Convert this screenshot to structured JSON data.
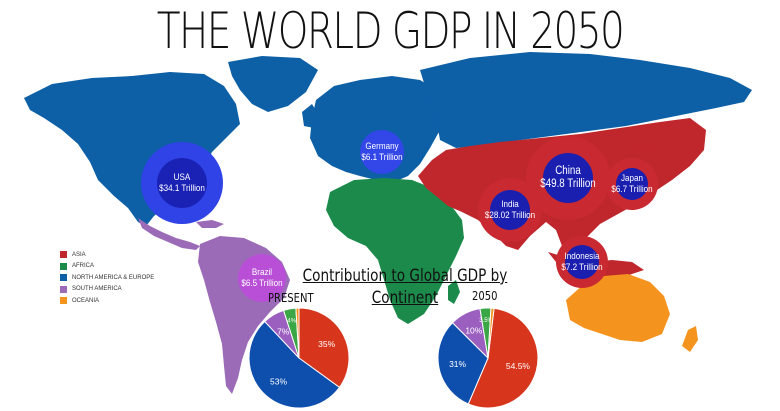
{
  "title": "THE WORLD GDP IN 2050",
  "bubbles": [
    {
      "name": "USA",
      "value": "$34.1 Trillion"
    },
    {
      "name": "Germany",
      "value": "$6.1 Trillion"
    },
    {
      "name": "China",
      "value": "$49.8 Trillion"
    },
    {
      "name": "Japan",
      "value": "$6.7 Trillion"
    },
    {
      "name": "India",
      "value": "$28.02 Trillion"
    },
    {
      "name": "Indonesia",
      "value": "$7.2 Trillion"
    },
    {
      "name": "Brazil",
      "value": "$6.5 Trillion"
    }
  ],
  "legend": [
    {
      "label": "ASIA",
      "color": "#c0272d"
    },
    {
      "label": "AFRICA",
      "color": "#1c8a4a"
    },
    {
      "label": "NORTH AMERICA & EUROPE",
      "color": "#0d5fa6"
    },
    {
      "label": "SOUTH AMERICA",
      "color": "#9b6bb8"
    },
    {
      "label": "OCEANIA",
      "color": "#f5931f"
    }
  ],
  "pies_title": "Contribution to Global GDP by Continent",
  "chart_data": [
    {
      "type": "pie",
      "title": "PRESENT",
      "slices": [
        {
          "label": "Asia",
          "value": 35,
          "text": "35%",
          "color": "#d7351c"
        },
        {
          "label": "North America & Europe",
          "value": 53,
          "text": "53%",
          "color": "#0e4fad"
        },
        {
          "label": "South America",
          "value": 7,
          "text": "7%",
          "color": "#9b5fc0"
        },
        {
          "label": "Africa",
          "value": 4,
          "text": "4%",
          "color": "#3aa645"
        },
        {
          "label": "Oceania",
          "value": 1,
          "text": "",
          "color": "#f5931f"
        }
      ]
    },
    {
      "type": "pie",
      "title": "2050",
      "slices": [
        {
          "label": "Asia",
          "value": 54.5,
          "text": "54.5%",
          "color": "#d7351c"
        },
        {
          "label": "North America & Europe",
          "value": 31,
          "text": "31%",
          "color": "#0e4fad"
        },
        {
          "label": "South America",
          "value": 10,
          "text": "10%",
          "color": "#9b5fc0"
        },
        {
          "label": "Africa",
          "value": 3.5,
          "text": "3.5%",
          "color": "#3aa645"
        },
        {
          "label": "Oceania",
          "value": 1,
          "text": "",
          "color": "#f5931f"
        }
      ]
    }
  ]
}
